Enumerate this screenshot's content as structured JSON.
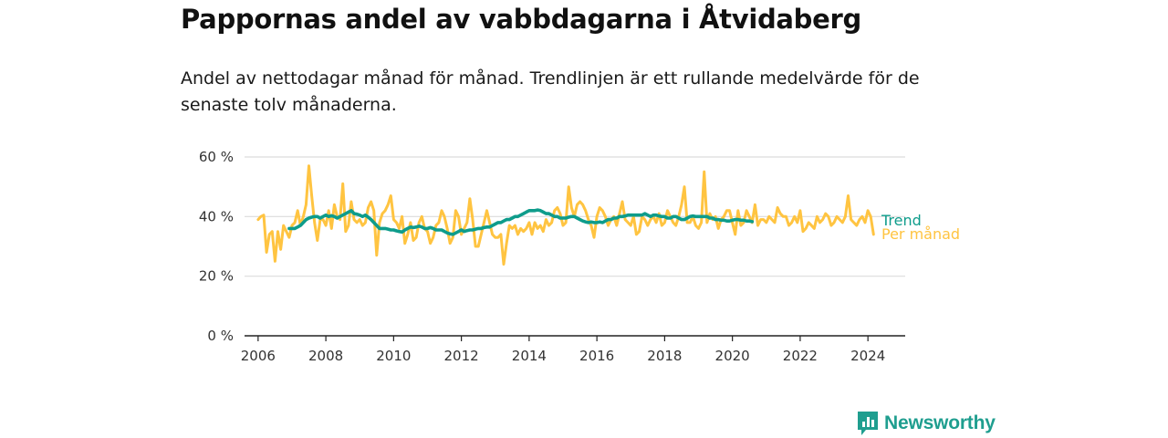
{
  "title": "Pappornas andel av vabbdagarna i Åtvidaberg",
  "subtitle": "Andel av nettodagar månad för månad. Trendlinjen är ett rullande medelvärde för de senaste tolv månaderna.",
  "brand": {
    "name": "Newsworthy",
    "color": "#1f9e8f",
    "icon": "newsworthy-logo-icon"
  },
  "chart_data": {
    "type": "line",
    "title": "Pappornas andel av vabbdagarna i Åtvidaberg",
    "xlabel": "",
    "ylabel": "",
    "xlim": [
      2005.6,
      2025.1
    ],
    "ylim": [
      0,
      60
    ],
    "x_ticks": [
      "2006",
      "2008",
      "2010",
      "2012",
      "2014",
      "2016",
      "2018",
      "2020",
      "2022",
      "2024"
    ],
    "y_ticks": [
      "0 %",
      "20 %",
      "40 %",
      "60 %"
    ],
    "grid": true,
    "legend": "right-end labels",
    "start": 2006.0,
    "step": 0.08333,
    "series": [
      {
        "name": "Trend",
        "color": "#0e9c8b",
        "start": 2006.917,
        "values": [
          36,
          36,
          36,
          36.5,
          37,
          38,
          39,
          39.5,
          39.8,
          40,
          40,
          39.5,
          40,
          40.5,
          40,
          40.3,
          40,
          39.5,
          40,
          40.5,
          41,
          41.5,
          42,
          41,
          40.8,
          40.5,
          40,
          40.5,
          39.8,
          39,
          38,
          37,
          36,
          36,
          36,
          35.8,
          35.5,
          35.5,
          35.2,
          35,
          34.8,
          35.5,
          36,
          36.5,
          36.3,
          36.5,
          36.8,
          36.5,
          36,
          36,
          36.3,
          36,
          35.5,
          35.5,
          35.5,
          35,
          34.5,
          34.2,
          34,
          34.5,
          35,
          35.5,
          35,
          35.3,
          35.5,
          35.5,
          35.8,
          36,
          36,
          36.3,
          36.5,
          36.5,
          37,
          37.5,
          38,
          38,
          38.5,
          39,
          39,
          39.5,
          40,
          40,
          40.5,
          41,
          41.5,
          42,
          42,
          42,
          42.2,
          42,
          41.5,
          41,
          41,
          40.5,
          40,
          40,
          39.5,
          39.5,
          39.5,
          39.8,
          40,
          40,
          39.5,
          39,
          38.5,
          38.2,
          38,
          38.2,
          38,
          38,
          38.2,
          38,
          38.5,
          39,
          39,
          39.5,
          39.5,
          40,
          40,
          40.2,
          40.5,
          40.5,
          40.5,
          40.5,
          40.5,
          40.5,
          41,
          40.5,
          40,
          40.5,
          40.5,
          40.2,
          40,
          40,
          39.5,
          39.5,
          40,
          40,
          39.5,
          39,
          39,
          39.5,
          40,
          40.2,
          40,
          40,
          40,
          40,
          40,
          39.5,
          39.5,
          39,
          39,
          38.8,
          38.8,
          38.5,
          38.5,
          38.8,
          39,
          39,
          38.8,
          38.8,
          38.5,
          38.5,
          38.3
        ]
      },
      {
        "name": "Per månad",
        "color": "#ffc441",
        "start": 2006.0,
        "values": [
          39,
          40,
          40.5,
          28,
          34,
          35,
          25,
          35,
          29,
          37,
          35,
          33,
          37,
          38,
          42,
          37,
          40,
          44,
          57,
          47,
          38,
          32,
          39,
          39,
          37,
          42,
          36,
          44,
          40,
          39,
          51,
          35,
          37,
          45,
          39,
          38,
          39,
          37,
          38,
          43,
          45,
          42,
          27,
          38,
          41,
          42,
          44,
          47,
          39,
          38,
          36,
          40,
          31,
          34,
          38,
          32,
          33,
          38,
          40,
          36,
          35,
          31,
          33,
          37,
          38,
          42,
          40,
          36,
          31,
          33,
          42,
          40,
          34,
          36,
          38,
          46,
          39,
          30,
          30,
          34,
          38,
          42,
          38,
          34,
          33,
          33,
          34,
          24,
          31,
          37,
          36,
          37,
          34,
          36,
          35,
          36,
          38,
          34,
          38,
          36,
          37,
          35,
          39,
          37,
          38,
          42,
          43,
          41,
          37,
          38,
          50,
          43,
          40,
          44,
          45,
          44,
          42,
          39,
          37,
          33,
          40,
          43,
          42,
          40,
          37,
          39,
          40,
          37,
          41,
          45,
          39,
          38,
          37,
          40,
          34,
          35,
          40,
          39,
          37,
          39,
          40,
          38,
          41,
          37,
          38,
          42,
          40,
          38,
          37,
          40,
          44,
          50,
          38,
          38,
          40,
          37,
          36,
          38,
          55,
          38,
          41,
          39,
          40,
          36,
          39,
          40,
          42,
          42,
          38,
          34,
          42,
          37,
          38,
          42,
          40,
          38,
          44,
          37,
          39,
          39,
          38,
          40,
          39,
          38,
          43,
          41,
          40,
          40,
          37,
          38,
          40,
          38,
          42,
          35,
          36,
          38,
          37,
          36,
          40,
          38,
          39,
          41,
          40,
          37,
          38,
          40,
          39,
          38,
          40,
          47,
          39,
          38,
          37,
          39,
          40,
          38,
          42,
          40,
          34
        ]
      }
    ]
  }
}
